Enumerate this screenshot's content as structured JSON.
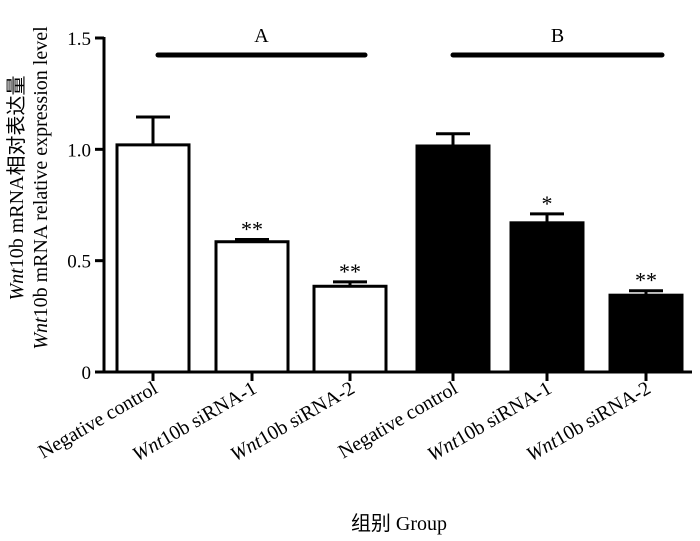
{
  "chart_data": {
    "type": "bar",
    "categories": [
      "Negative control",
      "Wnt10b siRNA-1",
      "Wnt10b siRNA-2",
      "Negative control",
      "Wnt10b siRNA-1",
      "Wnt10b siRNA-2"
    ],
    "category_parts": [
      {
        "italic": "",
        "rest": "Negative control"
      },
      {
        "italic": "Wnt",
        "rest": "10b siRNA-1"
      },
      {
        "italic": "Wnt",
        "rest": "10b siRNA-2"
      },
      {
        "italic": "",
        "rest": "Negative control"
      },
      {
        "italic": "Wnt",
        "rest": "10b siRNA-1"
      },
      {
        "italic": "Wnt",
        "rest": "10b siRNA-2"
      }
    ],
    "values": [
      1.02,
      0.585,
      0.385,
      1.015,
      0.67,
      0.345
    ],
    "errors": [
      0.125,
      0.01,
      0.02,
      0.055,
      0.04,
      0.02
    ],
    "bar_fill": [
      "white",
      "white",
      "white",
      "black",
      "black",
      "black"
    ],
    "significance": [
      "",
      "**",
      "**",
      "",
      "*",
      "**"
    ],
    "groups": [
      {
        "label": "A",
        "from": 0,
        "to": 2
      },
      {
        "label": "B",
        "from": 3,
        "to": 5
      }
    ],
    "ylim": [
      0,
      1.5
    ],
    "yticks": [
      "0",
      "0.5",
      "1.0",
      "1.5"
    ],
    "ylabel_line1_italic": "Wnt",
    "ylabel_line1_rest": "10b mRNA相对表达量",
    "ylabel_line2_italic": "Wnt",
    "ylabel_line2_rest": "10b mRNA relative expression level",
    "xlabel": "组别 Group",
    "grid": false,
    "legend": "none"
  }
}
